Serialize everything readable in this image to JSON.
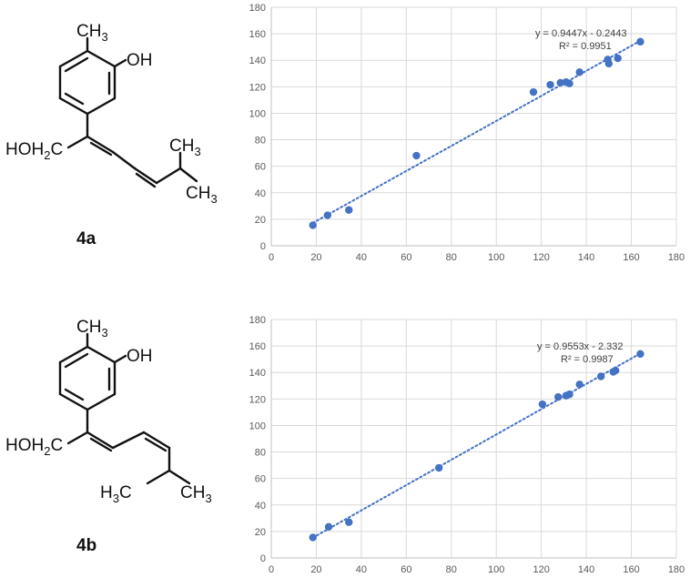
{
  "compounds": [
    {
      "label": "4a",
      "atoms": {
        "methyl": "CH",
        "methyl_sub": "3",
        "hydroxyl": "OH",
        "hoh2c": "HOH",
        "hoh2c_sub": "2",
        "hoh2c_c": "C",
        "ch": "CH",
        "ch_sub": "3",
        "ch3": "CH",
        "ch3_sub": "3"
      }
    },
    {
      "label": "4b",
      "atoms": {
        "methyl": "CH",
        "methyl_sub": "3",
        "hydroxyl": "OH",
        "hoh2c": "HOH",
        "hoh2c_sub": "2",
        "hoh2c_c": "C",
        "h3c": "H",
        "h3c_sub": "3",
        "h3c_c": "C",
        "ch3": "CH",
        "ch3_sub": "3"
      }
    }
  ],
  "chart_data": [
    {
      "type": "scatter",
      "compound": "4a",
      "title": "",
      "xlabel": "",
      "ylabel": "",
      "xlim": [
        0,
        180
      ],
      "ylim": [
        0,
        180
      ],
      "xticks": [
        0,
        20,
        40,
        60,
        80,
        100,
        120,
        140,
        160,
        180
      ],
      "yticks": [
        0,
        20,
        40,
        60,
        80,
        100,
        120,
        140,
        160,
        180
      ],
      "grid": true,
      "marker_color": "#4472c4",
      "trendline": {
        "type": "linear",
        "slope": 0.9447,
        "intercept": -0.2443,
        "style": "dotted"
      },
      "equation_text": "y = 0.9447x - 0.2443",
      "r2_text": "R² = 0.9951",
      "points": [
        {
          "x": 18.5,
          "y": 15.5
        },
        {
          "x": 25,
          "y": 23
        },
        {
          "x": 34.5,
          "y": 27
        },
        {
          "x": 64.5,
          "y": 68
        },
        {
          "x": 116.5,
          "y": 116
        },
        {
          "x": 124,
          "y": 121.5
        },
        {
          "x": 128.5,
          "y": 123
        },
        {
          "x": 131,
          "y": 123.5
        },
        {
          "x": 132.5,
          "y": 122.5
        },
        {
          "x": 137,
          "y": 131
        },
        {
          "x": 149.5,
          "y": 140.5
        },
        {
          "x": 150,
          "y": 137.5
        },
        {
          "x": 154,
          "y": 141.5
        },
        {
          "x": 164,
          "y": 154
        }
      ]
    },
    {
      "type": "scatter",
      "compound": "4b",
      "title": "",
      "xlabel": "",
      "ylabel": "",
      "xlim": [
        0,
        180
      ],
      "ylim": [
        0,
        180
      ],
      "xticks": [
        0,
        20,
        40,
        60,
        80,
        100,
        120,
        140,
        160,
        180
      ],
      "yticks": [
        0,
        20,
        40,
        60,
        80,
        100,
        120,
        140,
        160,
        180
      ],
      "grid": true,
      "marker_color": "#4472c4",
      "trendline": {
        "type": "linear",
        "slope": 0.9553,
        "intercept": -2.332,
        "style": "dotted"
      },
      "equation_text": "y = 0.9553x - 2.332",
      "r2_text": "R² = 0.9987",
      "points": [
        {
          "x": 18.5,
          "y": 15.5
        },
        {
          "x": 25.5,
          "y": 23.5
        },
        {
          "x": 34.5,
          "y": 27
        },
        {
          "x": 74.5,
          "y": 68
        },
        {
          "x": 120.5,
          "y": 116
        },
        {
          "x": 127.5,
          "y": 121.5
        },
        {
          "x": 131,
          "y": 122.5
        },
        {
          "x": 132.5,
          "y": 123.5
        },
        {
          "x": 137,
          "y": 131
        },
        {
          "x": 146.5,
          "y": 137
        },
        {
          "x": 152,
          "y": 140.5
        },
        {
          "x": 153,
          "y": 141.5
        },
        {
          "x": 164,
          "y": 154
        }
      ]
    }
  ]
}
